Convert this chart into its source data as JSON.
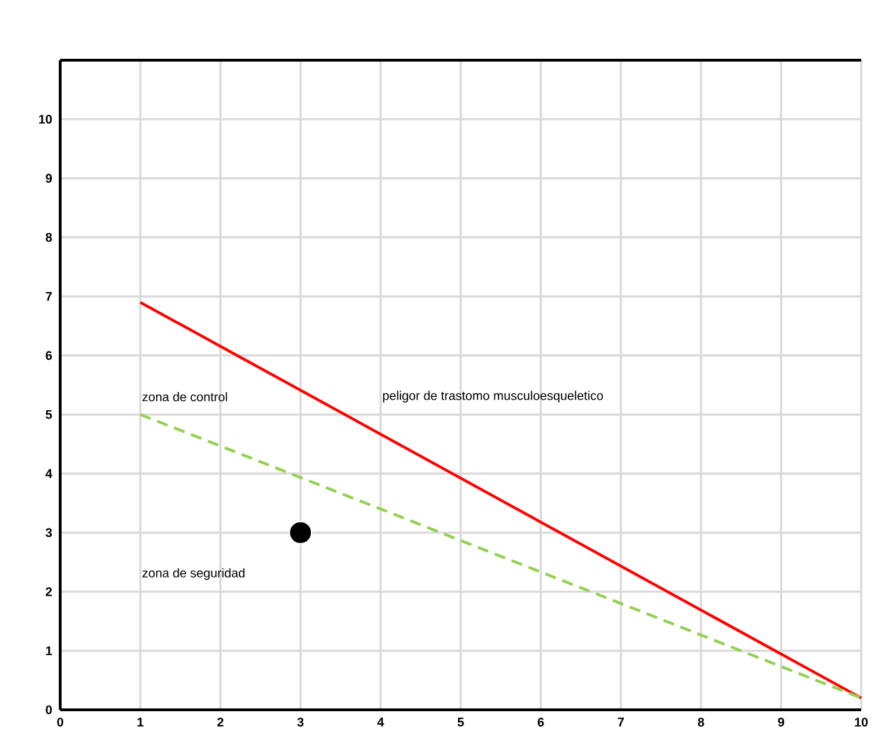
{
  "chart_data": {
    "type": "line",
    "xlim": [
      0,
      10
    ],
    "ylim": [
      0,
      11
    ],
    "xticks": [
      0,
      1,
      2,
      3,
      4,
      5,
      6,
      7,
      8,
      9,
      10
    ],
    "yticks": [
      0,
      1,
      2,
      3,
      4,
      5,
      6,
      7,
      8,
      9,
      10
    ],
    "grid": true,
    "series": [
      {
        "color": "#ff0000",
        "x": [
          1,
          10
        ],
        "values": [
          6.9,
          0.2
        ],
        "line_style": "solid",
        "marker": "none"
      },
      {
        "color": "#92d050",
        "x": [
          1,
          10
        ],
        "values": [
          5.0,
          0.2
        ],
        "line_style": "dashed",
        "marker": "none"
      },
      {
        "type": "scatter",
        "color": "#000000",
        "x": [
          3
        ],
        "values": [
          3.0
        ],
        "marker": "circle"
      }
    ],
    "annotations": [
      "zona de control",
      "peligor de trastomo musculoesqueletico",
      "zona de seguridad"
    ]
  }
}
